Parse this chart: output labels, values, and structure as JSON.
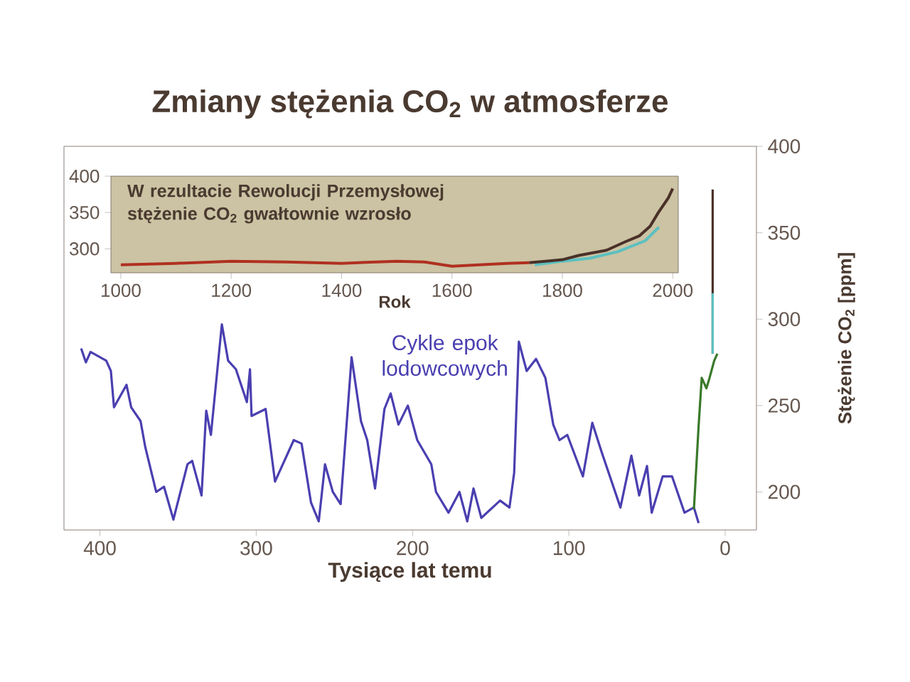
{
  "chart_data": [
    {
      "type": "line",
      "title": "Zmiany stężenia CO$_{2}$ w atmosferze",
      "xlabel": "Tysiące lat temu",
      "ylabel": "Stężenie CO$_{2}$ [ppm]",
      "xlim": [
        423,
        -20
      ],
      "ylim": [
        178,
        400
      ],
      "xticks": [
        400,
        300,
        200,
        100,
        0
      ],
      "yticks": [
        200,
        250,
        300,
        350,
        400
      ],
      "annotations": [
        "Cykle epok lodowcowych"
      ],
      "series": [
        {
          "color": "#4a3fb0",
          "x": [
            412,
            409,
            406,
            396,
            393,
            391,
            383,
            380,
            374,
            371,
            364,
            359,
            353,
            344,
            341,
            335,
            332,
            329,
            322,
            318,
            313,
            306,
            304,
            303,
            294,
            288,
            276,
            271,
            265,
            260,
            256,
            251,
            246,
            239,
            233,
            229,
            224,
            218,
            214,
            209,
            203,
            197,
            188,
            185,
            177,
            170,
            165,
            161,
            156,
            144,
            138,
            135,
            132,
            127,
            121,
            115,
            110,
            106,
            101,
            91,
            85,
            79,
            67,
            60,
            55,
            50,
            47,
            40,
            34,
            26,
            20,
            17
          ],
          "values": [
            283,
            275,
            281,
            276,
            270,
            249,
            262,
            249,
            241,
            226,
            200,
            203,
            184,
            216,
            218,
            198,
            247,
            233,
            297,
            276,
            271,
            252,
            271,
            244,
            248,
            206,
            230,
            228,
            194,
            183,
            216,
            200,
            193,
            278,
            241,
            230,
            202,
            248,
            257,
            239,
            250,
            230,
            216,
            200,
            188,
            200,
            183,
            202,
            185,
            195,
            191,
            211,
            287,
            270,
            277,
            266,
            239,
            230,
            233,
            209,
            240,
            223,
            191,
            221,
            198,
            215,
            188,
            209,
            209,
            188,
            191,
            182
          ]
        },
        {
          "color": "#3a7a2a",
          "x": [
            20,
            17,
            15,
            12,
            10,
            7,
            5
          ],
          "values": [
            190,
            238,
            266,
            260,
            266,
            276,
            280
          ]
        },
        {
          "color": "#4a3028",
          "x": [
            8,
            8
          ],
          "values": [
            280,
            375
          ]
        },
        {
          "color": "#5cc0c0",
          "x": [
            8,
            8
          ],
          "values": [
            280,
            315
          ]
        }
      ]
    },
    {
      "type": "line",
      "xlabel": "Rok",
      "xlim": [
        982,
        2010
      ],
      "ylim": [
        267,
        400
      ],
      "xticks": [
        1000,
        1200,
        1400,
        1600,
        1800,
        2000
      ],
      "yticks": [
        300,
        350,
        400
      ],
      "annotations": [
        "**W rezultacie Rewolucji Przemysłowej stężenie CO$_{2}$ gwałtownie wzrosło**"
      ],
      "series": [
        {
          "color": "#b03020",
          "x": [
            1000,
            1100,
            1200,
            1300,
            1400,
            1500,
            1550,
            1600,
            1650,
            1700,
            1740
          ],
          "values": [
            278,
            280,
            283,
            282,
            280,
            283,
            282,
            276,
            278,
            280,
            281
          ]
        },
        {
          "color": "#5cc0c0",
          "x": [
            1750,
            1800,
            1850,
            1900,
            1950,
            1975
          ],
          "values": [
            278,
            283,
            287,
            296,
            311,
            330
          ]
        },
        {
          "color": "#4a3028",
          "x": [
            1740,
            1800,
            1830,
            1880,
            1915,
            1940,
            1959,
            1974,
            1992,
            2000
          ],
          "values": [
            281,
            285,
            291,
            298,
            310,
            318,
            331,
            350,
            370,
            383
          ]
        }
      ]
    }
  ]
}
